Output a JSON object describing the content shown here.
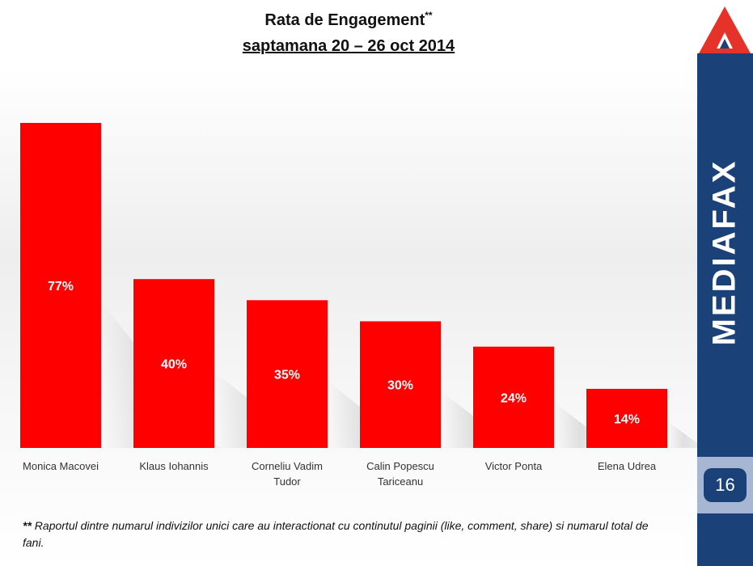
{
  "slide": {
    "title": "Rata de Engagement",
    "title_mark": "**",
    "subtitle": "saptamana 20 – 26 oct 2014",
    "footnote_mark": "**",
    "footnote": "Raportul dintre numarul indivizilor unici care au interactionat cu continutul  paginii (like, comment, share) si numarul total de fani."
  },
  "sidebar": {
    "brand": "MEDIAFAX",
    "page_number": "16",
    "logo_icon": "mediafax-triangle-logo"
  },
  "colors": {
    "bar": "#ff0000",
    "sidebar": "#1b4179",
    "page_box": "#a7b7d3",
    "logo_red": "#e5332a"
  },
  "chart_data": {
    "type": "bar",
    "categories": [
      [
        "Monica Macovei"
      ],
      [
        "Klaus Iohannis"
      ],
      [
        "Corneliu Vadim",
        "Tudor"
      ],
      [
        "Calin Popescu",
        "Tariceanu"
      ],
      [
        "Victor Ponta"
      ],
      [
        "Elena Udrea"
      ]
    ],
    "values": [
      77,
      40,
      35,
      30,
      24,
      14
    ],
    "value_labels": [
      "77%",
      "40%",
      "35%",
      "30%",
      "24%",
      "14%"
    ],
    "unit": "%",
    "title": "Rata de Engagement",
    "subtitle": "saptamana 20 – 26 oct 2014",
    "xlabel": "",
    "ylabel": "",
    "ylim": [
      0,
      77
    ],
    "grid": false,
    "legend": "none"
  }
}
